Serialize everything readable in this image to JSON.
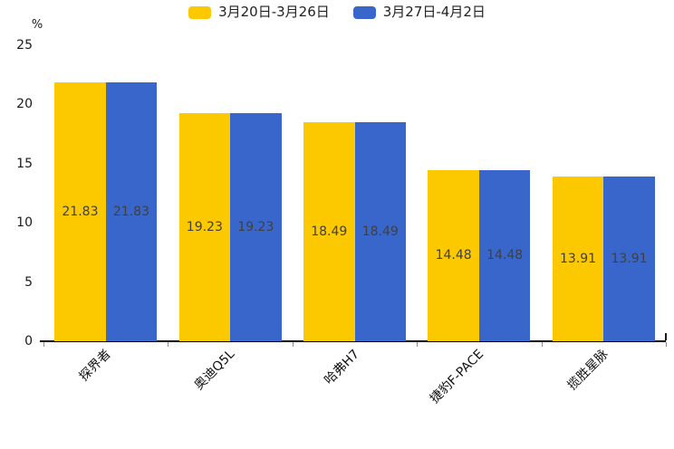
{
  "colors": {
    "series_yellow": "#FCC800",
    "series_blue": "#3866CB",
    "axis_line": "#000000",
    "tick_mark": "#8a8a8a",
    "value_label_text": "#404040",
    "axis_text": "#1a1a1a"
  },
  "legend": {
    "items": [
      {
        "label": "3月20日-3月26日",
        "color": "#FCC800"
      },
      {
        "label": "3月27日-4月2日",
        "color": "#3866CB"
      }
    ]
  },
  "chart_data": {
    "type": "bar",
    "title": "",
    "categories": [
      "探界者",
      "奥迪Q5L",
      "哈弗H7",
      "捷豹F-PACE",
      "揽胜星脉"
    ],
    "series": [
      {
        "name": "3月20日-3月26日",
        "color": "#FCC800",
        "values": [
          21.83,
          19.23,
          18.49,
          14.48,
          13.91
        ]
      },
      {
        "name": "3月27日-4月2日",
        "color": "#3866CB",
        "values": [
          21.83,
          19.23,
          18.49,
          14.48,
          13.91
        ]
      }
    ],
    "value_labels_visible": true,
    "xlabel": "",
    "ylabel": "%",
    "ylim": [
      0,
      25
    ],
    "yticks": [
      0,
      5,
      10,
      15,
      20,
      25
    ],
    "grid": false,
    "legend_position": "top",
    "xlabel_rotation_deg": 45
  }
}
